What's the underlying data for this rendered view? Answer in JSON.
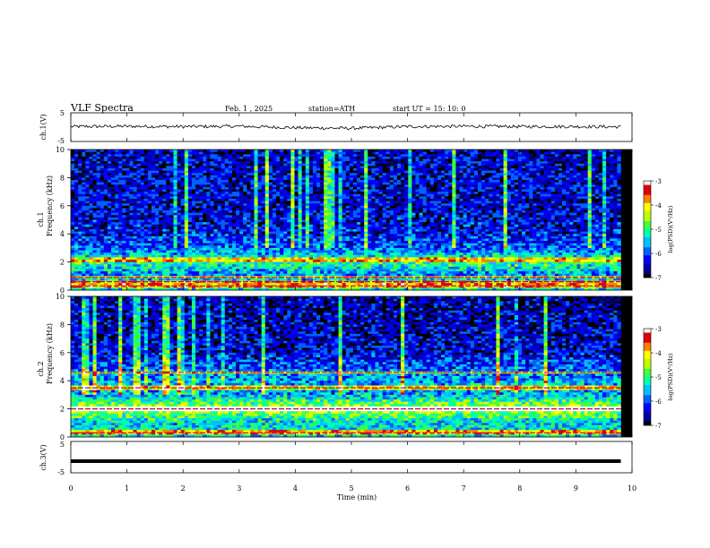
{
  "header": {
    "title": "VLF  Spectra",
    "date": "Feb. 1  , 2025",
    "station": "station=ATH",
    "start_ut": "start  UT  =   15: 10: 0"
  },
  "panels": {
    "ch1_wave": {
      "ylabel": "ch.1(V)",
      "ticks": [
        "5",
        "-5"
      ]
    },
    "ch1_spec": {
      "ylabel": "ch.1\nFrequency  (kHz)",
      "ylabel_ch": "ch.1",
      "ylabel_freq": "Frequency  (kHz)",
      "ticks": [
        "10",
        "8",
        "6",
        "4",
        "2",
        "0"
      ]
    },
    "ch2_spec": {
      "ylabel_ch": "ch.2",
      "ylabel_freq": "Frequency  (kHz)",
      "ticks": [
        "10",
        "8",
        "6",
        "4",
        "2",
        "0"
      ]
    },
    "ch3_wave": {
      "ylabel": "ch.3(V)",
      "ticks": [
        "5",
        "-5"
      ]
    }
  },
  "xaxis": {
    "label": "Time  (min)",
    "ticks": [
      "0",
      "1",
      "2",
      "3",
      "4",
      "5",
      "6",
      "7",
      "8",
      "9",
      "10"
    ]
  },
  "colorbar": {
    "label": "log(PSD)(V²/Hz)",
    "ticks": [
      "-3",
      "-4",
      "-5",
      "-6",
      "-7"
    ]
  },
  "colors": {
    "scale": [
      "#000000",
      "#0000a0",
      "#0000ff",
      "#0060ff",
      "#00c0ff",
      "#00ffb0",
      "#40ff40",
      "#c0ff00",
      "#ffff00",
      "#ff8000",
      "#e00000",
      "#ffffff"
    ]
  },
  "chart_data": [
    {
      "type": "line",
      "name": "ch.1 waveform",
      "xlabel": "Time  (min)",
      "ylabel": "ch.1(V)",
      "xlim": [
        0,
        10
      ],
      "ylim": [
        -5,
        5
      ],
      "x": [
        0,
        1,
        2,
        3,
        4,
        5,
        6,
        7,
        8,
        9,
        9.8
      ],
      "y": [
        0.2,
        0.3,
        0.2,
        0.3,
        -0.2,
        -0.4,
        0.2,
        0.3,
        0.2,
        0.2,
        0.1
      ]
    },
    {
      "type": "heatmap",
      "name": "ch.1 spectrogram",
      "xlabel": "Time  (min)",
      "ylabel": "Frequency  (kHz)",
      "xlim": [
        0,
        10
      ],
      "ylim": [
        0,
        10
      ],
      "zlabel": "log(PSD)(V²/Hz)",
      "zlim": [
        -7,
        -3
      ],
      "features": {
        "enhanced_band_khz": [
          2.0,
          2.4
        ],
        "strong_lines_khz": [
          0.3,
          0.6,
          0.9
        ],
        "intensity_at_khz": {
          "0.5": -5.2,
          "1": -5.8,
          "2": -5.0,
          "3": -5.9,
          "4": -6.3,
          "6": -6.4,
          "8": -6.4,
          "10": -6.5
        }
      }
    },
    {
      "type": "heatmap",
      "name": "ch.2 spectrogram",
      "xlabel": "Time  (min)",
      "ylabel": "Frequency  (kHz)",
      "xlim": [
        0,
        10
      ],
      "ylim": [
        0,
        10
      ],
      "zlabel": "log(PSD)(V²/Hz)",
      "zlim": [
        -7,
        -3
      ],
      "features": {
        "enhanced_band_khz": [
          1.8,
          2.2
        ],
        "strong_lines_khz": [
          2.0,
          3.5,
          4.6,
          0.3
        ],
        "intensity_at_khz": {
          "0.5": -5.3,
          "1": -5.5,
          "2": -4.3,
          "3": -5.6,
          "4": -5.6,
          "6": -6.4,
          "8": -6.5,
          "10": -6.6
        }
      }
    },
    {
      "type": "line",
      "name": "ch.3 waveform",
      "xlabel": "Time  (min)",
      "ylabel": "ch.3(V)",
      "xlim": [
        0,
        10
      ],
      "ylim": [
        -5,
        5
      ],
      "x": [
        0,
        9.8
      ],
      "y": [
        -1.3,
        -1.3
      ]
    }
  ]
}
